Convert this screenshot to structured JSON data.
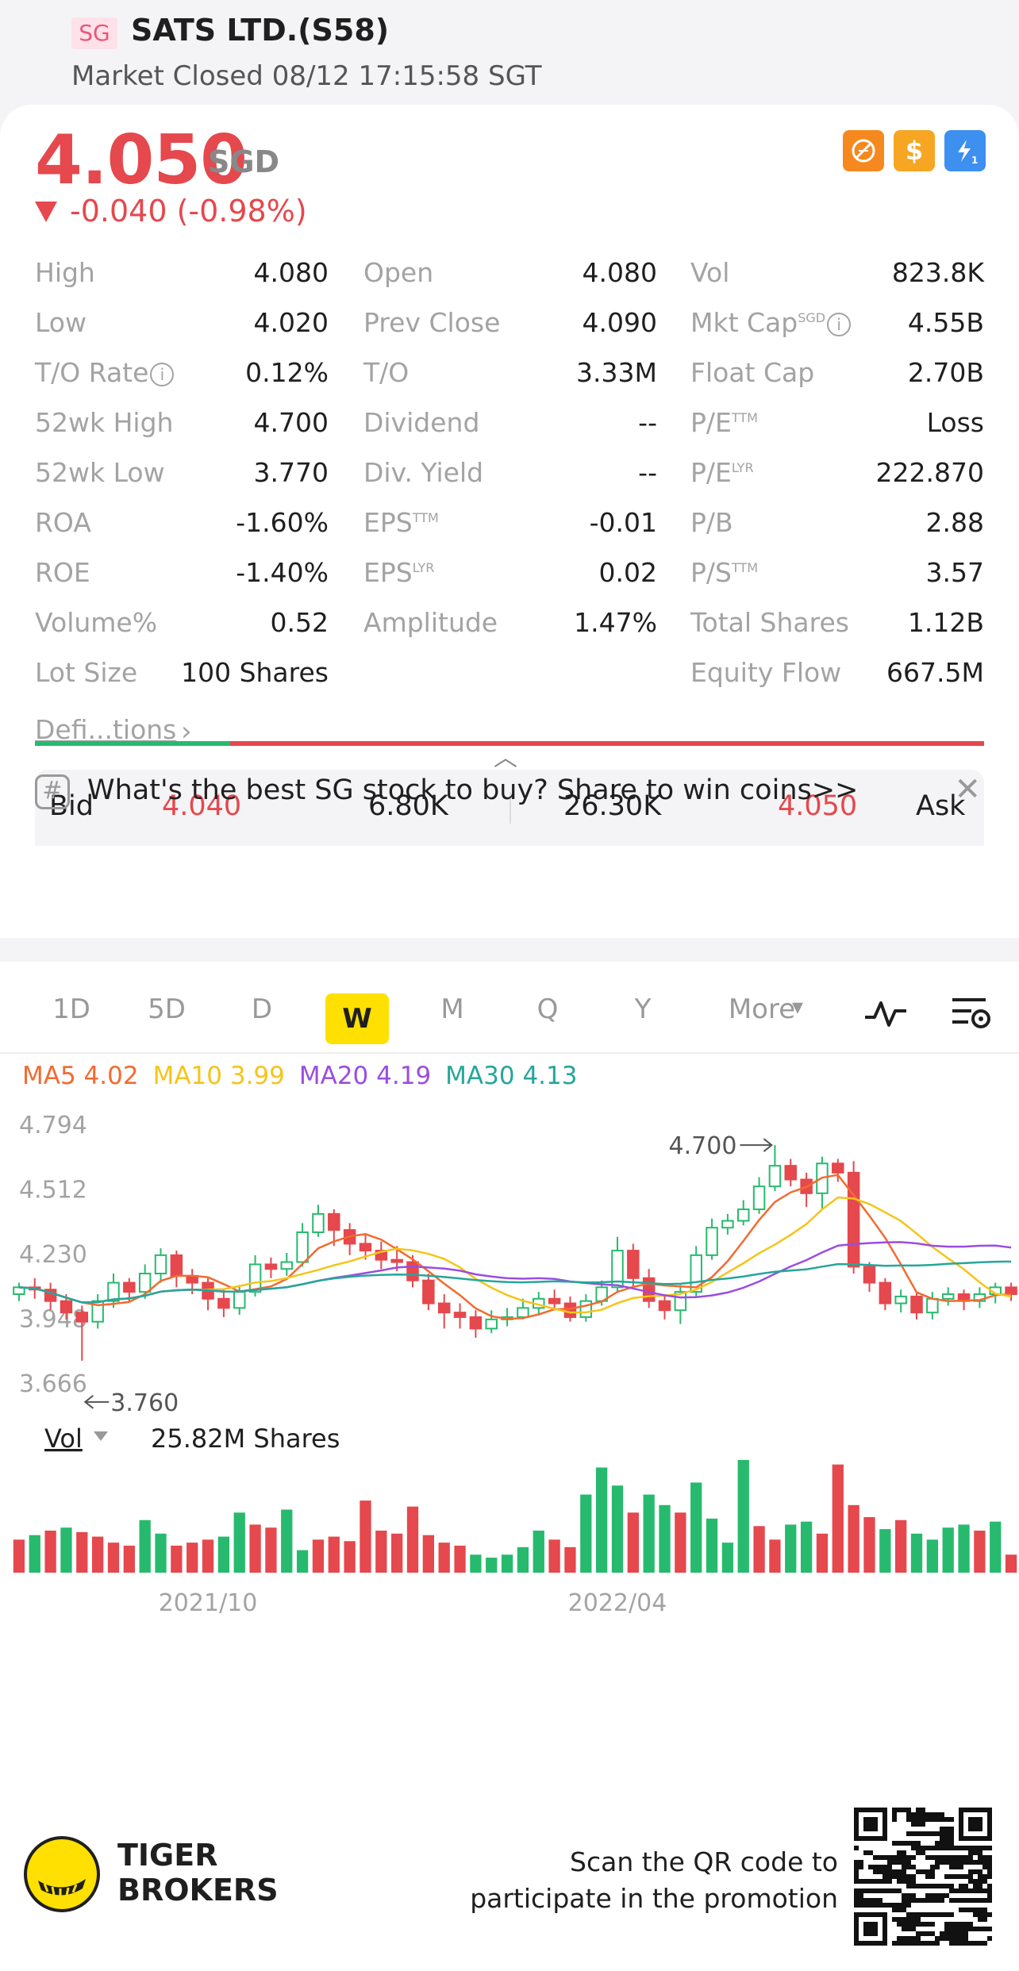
{
  "header": {
    "market_tag": "SG",
    "ticker_title": "SATS LTD.(S58)",
    "status": "Market Closed 08/12 17:15:58 SGT"
  },
  "quote": {
    "price": "4.050",
    "currency": "SGD",
    "change": "-0.040 (-0.98%)",
    "badges": [
      "no-short-icon",
      "dollar-icon",
      "lightning-level1-icon"
    ],
    "colors": {
      "down": "#e5484d",
      "up": "#27ba6e"
    }
  },
  "stats": {
    "col1": [
      {
        "label": "High",
        "value": "4.080"
      },
      {
        "label": "Low",
        "value": "4.020"
      },
      {
        "label": "T/O Rate",
        "value": "0.12%"
      },
      {
        "label": "52wk High",
        "value": "4.700"
      },
      {
        "label": "52wk Low",
        "value": "3.770"
      },
      {
        "label": "ROA",
        "value": "-1.60%"
      },
      {
        "label": "ROE",
        "value": "-1.40%"
      },
      {
        "label": "Volume%",
        "value": "0.52"
      },
      {
        "label": "Lot Size",
        "value": "100 Shares"
      }
    ],
    "col2": [
      {
        "label": "Open",
        "value": "4.080"
      },
      {
        "label": "Prev Close",
        "value": "4.090"
      },
      {
        "label": "T/O",
        "value": "3.33M"
      },
      {
        "label": "Dividend",
        "value": "--"
      },
      {
        "label": "Div. Yield",
        "value": "--"
      },
      {
        "label": "EPS",
        "sup": "TTM",
        "value": "-0.01"
      },
      {
        "label": "EPS",
        "sup": "LYR",
        "value": "0.02"
      },
      {
        "label": "Amplitude",
        "value": "1.47%"
      }
    ],
    "col3": [
      {
        "label": "Vol",
        "value": "823.8K"
      },
      {
        "label": "Mkt Cap",
        "sup": "SGD",
        "value": "4.55B"
      },
      {
        "label": "Float Cap",
        "value": "2.70B"
      },
      {
        "label": "P/E",
        "sup": "TTM",
        "value": "Loss"
      },
      {
        "label": "P/E",
        "sup": "LYR",
        "value": "222.870"
      },
      {
        "label": "P/B",
        "value": "2.88"
      },
      {
        "label": "P/S",
        "sup": "TTM",
        "value": "3.57"
      },
      {
        "label": "Total Shares",
        "value": "1.12B"
      },
      {
        "label": "Equity Flow",
        "value": "667.5M"
      }
    ],
    "definitions_link": "Defi...tions"
  },
  "bidask": {
    "bid_label": "Bid",
    "bid_price": "4.040",
    "bid_size": "6.80K",
    "ask_size": "26.30K",
    "ask_price": "4.050",
    "ask_label": "Ask",
    "bid_fraction": 0.206
  },
  "promo": {
    "text": "What's the best SG stock to buy? Share to win coins>>"
  },
  "chart_tabs": {
    "items": [
      "1D",
      "5D",
      "D",
      "W",
      "M",
      "Q",
      "Y",
      "More"
    ],
    "active": "W"
  },
  "chart_data": {
    "type": "candlestick",
    "period": "W",
    "ma_legend": [
      {
        "name": "MA5",
        "value": "4.02",
        "color": "#f26b30"
      },
      {
        "name": "MA10",
        "value": "3.99",
        "color": "#f5c518"
      },
      {
        "name": "MA20",
        "value": "4.19",
        "color": "#9b4de0"
      },
      {
        "name": "MA30",
        "value": "4.13",
        "color": "#26a69a"
      }
    ],
    "y_ticks": [
      "4.794",
      "4.512",
      "4.230",
      "3.948",
      "3.666"
    ],
    "ylim": [
      3.666,
      4.794
    ],
    "high_marker": "4.700",
    "low_marker": "3.760",
    "x_labels": [
      {
        "label": "2021/10",
        "index": 12
      },
      {
        "label": "2022/04",
        "index": 38
      }
    ],
    "candles": [
      [
        4.05,
        4.08,
        4.1,
        4.02
      ],
      [
        4.08,
        4.07,
        4.12,
        4.03
      ],
      [
        4.07,
        4.02,
        4.1,
        3.98
      ],
      [
        4.02,
        3.97,
        4.05,
        3.94
      ],
      [
        3.97,
        3.93,
        4.0,
        3.76
      ],
      [
        3.93,
        4.02,
        4.05,
        3.9
      ],
      [
        4.02,
        4.1,
        4.14,
        3.99
      ],
      [
        4.1,
        4.06,
        4.12,
        4.02
      ],
      [
        4.06,
        4.14,
        4.18,
        4.03
      ],
      [
        4.14,
        4.22,
        4.25,
        4.1
      ],
      [
        4.22,
        4.13,
        4.24,
        4.08
      ],
      [
        4.13,
        4.1,
        4.16,
        4.05
      ],
      [
        4.1,
        4.03,
        4.12,
        3.98
      ],
      [
        4.03,
        3.99,
        4.07,
        3.95
      ],
      [
        3.99,
        4.06,
        4.09,
        3.96
      ],
      [
        4.06,
        4.18,
        4.22,
        4.04
      ],
      [
        4.18,
        4.16,
        4.21,
        4.12
      ],
      [
        4.16,
        4.19,
        4.23,
        4.13
      ],
      [
        4.19,
        4.32,
        4.36,
        4.17
      ],
      [
        4.32,
        4.4,
        4.44,
        4.3
      ],
      [
        4.4,
        4.33,
        4.42,
        4.26
      ],
      [
        4.33,
        4.27,
        4.36,
        4.22
      ],
      [
        4.27,
        4.24,
        4.31,
        4.2
      ],
      [
        4.24,
        4.2,
        4.28,
        4.16
      ],
      [
        4.2,
        4.19,
        4.26,
        4.15
      ],
      [
        4.19,
        4.11,
        4.22,
        4.08
      ],
      [
        4.11,
        4.01,
        4.14,
        3.98
      ],
      [
        4.01,
        3.97,
        4.05,
        3.9
      ],
      [
        3.97,
        3.95,
        4.01,
        3.9
      ],
      [
        3.95,
        3.9,
        3.98,
        3.86
      ],
      [
        3.9,
        3.94,
        3.98,
        3.88
      ],
      [
        3.94,
        3.95,
        3.99,
        3.91
      ],
      [
        3.95,
        3.99,
        4.03,
        3.94
      ],
      [
        3.99,
        4.03,
        4.06,
        3.96
      ],
      [
        4.03,
        4.01,
        4.07,
        3.98
      ],
      [
        4.01,
        3.95,
        4.04,
        3.93
      ],
      [
        3.95,
        4.02,
        4.05,
        3.93
      ],
      [
        4.02,
        4.08,
        4.11,
        4.0
      ],
      [
        4.08,
        4.24,
        4.3,
        4.06
      ],
      [
        4.24,
        4.12,
        4.27,
        4.08
      ],
      [
        4.12,
        4.02,
        4.16,
        3.99
      ],
      [
        4.02,
        3.98,
        4.05,
        3.94
      ],
      [
        3.98,
        4.06,
        4.09,
        3.92
      ],
      [
        4.06,
        4.22,
        4.26,
        4.04
      ],
      [
        4.22,
        4.34,
        4.38,
        4.2
      ],
      [
        4.34,
        4.37,
        4.4,
        4.31
      ],
      [
        4.37,
        4.42,
        4.46,
        4.35
      ],
      [
        4.42,
        4.52,
        4.56,
        4.4
      ],
      [
        4.52,
        4.61,
        4.7,
        4.5
      ],
      [
        4.61,
        4.55,
        4.64,
        4.52
      ],
      [
        4.55,
        4.49,
        4.58,
        4.43
      ],
      [
        4.49,
        4.62,
        4.65,
        4.42
      ],
      [
        4.62,
        4.58,
        4.64,
        4.54
      ],
      [
        4.58,
        4.17,
        4.63,
        4.14
      ],
      [
        4.17,
        4.1,
        4.19,
        4.06
      ],
      [
        4.1,
        4.01,
        4.12,
        3.98
      ],
      [
        4.01,
        4.04,
        4.07,
        3.97
      ],
      [
        4.04,
        3.97,
        4.06,
        3.94
      ],
      [
        3.97,
        4.03,
        4.06,
        3.94
      ],
      [
        4.03,
        4.05,
        4.08,
        4.0
      ],
      [
        4.05,
        4.02,
        4.07,
        3.98
      ],
      [
        4.02,
        4.05,
        4.08,
        3.99
      ],
      [
        4.05,
        4.08,
        4.1,
        4.01
      ],
      [
        4.08,
        4.05,
        4.1,
        4.02
      ]
    ],
    "volume": {
      "indicator": "Vol",
      "latest": "25.82M Shares",
      "bars": [
        [
          22,
          "d"
        ],
        [
          25,
          "u"
        ],
        [
          28,
          "d"
        ],
        [
          30,
          "u"
        ],
        [
          27,
          "d"
        ],
        [
          24,
          "d"
        ],
        [
          20,
          "d"
        ],
        [
          18,
          "d"
        ],
        [
          35,
          "u"
        ],
        [
          26,
          "u"
        ],
        [
          18,
          "d"
        ],
        [
          20,
          "d"
        ],
        [
          22,
          "d"
        ],
        [
          24,
          "u"
        ],
        [
          40,
          "u"
        ],
        [
          32,
          "d"
        ],
        [
          30,
          "d"
        ],
        [
          42,
          "u"
        ],
        [
          15,
          "u"
        ],
        [
          22,
          "d"
        ],
        [
          24,
          "d"
        ],
        [
          21,
          "d"
        ],
        [
          48,
          "d"
        ],
        [
          28,
          "d"
        ],
        [
          26,
          "d"
        ],
        [
          44,
          "d"
        ],
        [
          25,
          "d"
        ],
        [
          20,
          "d"
        ],
        [
          18,
          "d"
        ],
        [
          12,
          "u"
        ],
        [
          10,
          "u"
        ],
        [
          12,
          "u"
        ],
        [
          17,
          "u"
        ],
        [
          28,
          "u"
        ],
        [
          22,
          "d"
        ],
        [
          17,
          "d"
        ],
        [
          52,
          "u"
        ],
        [
          70,
          "u"
        ],
        [
          58,
          "u"
        ],
        [
          40,
          "d"
        ],
        [
          52,
          "u"
        ],
        [
          45,
          "u"
        ],
        [
          40,
          "d"
        ],
        [
          60,
          "u"
        ],
        [
          36,
          "u"
        ],
        [
          20,
          "u"
        ],
        [
          75,
          "u"
        ],
        [
          31,
          "d"
        ],
        [
          22,
          "d"
        ],
        [
          32,
          "u"
        ],
        [
          34,
          "u"
        ],
        [
          26,
          "d"
        ],
        [
          72,
          "d"
        ],
        [
          45,
          "d"
        ],
        [
          37,
          "d"
        ],
        [
          29,
          "u"
        ],
        [
          35,
          "d"
        ],
        [
          26,
          "u"
        ],
        [
          22,
          "u"
        ],
        [
          30,
          "u"
        ],
        [
          32,
          "u"
        ],
        [
          28,
          "d"
        ],
        [
          34,
          "u"
        ],
        [
          12,
          "d"
        ]
      ]
    }
  },
  "footer": {
    "brand_line1": "TIGER",
    "brand_line2": "BROKERS",
    "qr_line1": "Scan the QR code to",
    "qr_line2": "participate in the promotion"
  }
}
